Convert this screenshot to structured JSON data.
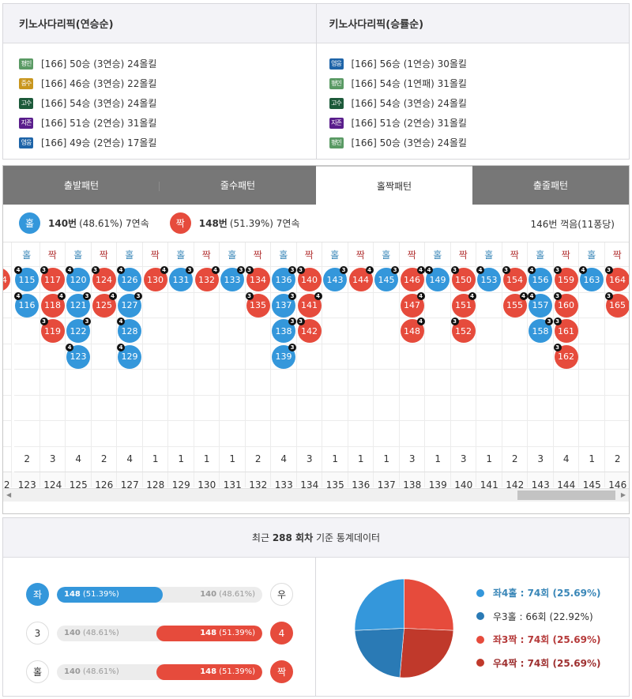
{
  "picks": [
    {
      "title": "키노사다리픽(연승순)",
      "rows": [
        {
          "badge": "평민",
          "badge_color": "#5a9a64",
          "text": "[166] 50승 (3연승) 24올킬"
        },
        {
          "badge": "중수",
          "badge_color": "#c8961e",
          "text": "[166] 46승 (3연승) 22올킬"
        },
        {
          "badge": "고수",
          "badge_color": "#1d5a3a",
          "text": "[166] 54승 (3연승) 24올킬"
        },
        {
          "badge": "지존",
          "badge_color": "#5a1e8c",
          "text": "[166] 51승 (2연승) 31올킬"
        },
        {
          "badge": "영웅",
          "badge_color": "#1e64a8",
          "text": "[166] 49승 (2연승) 17올킬"
        }
      ]
    },
    {
      "title": "키노사다리픽(승률순)",
      "rows": [
        {
          "badge": "영웅",
          "badge_color": "#1e64a8",
          "text": "[166] 56승 (1연승) 30올킬"
        },
        {
          "badge": "평민",
          "badge_color": "#5a9a64",
          "text": "[166] 54승 (1연패) 31올킬"
        },
        {
          "badge": "고수",
          "badge_color": "#1d5a3a",
          "text": "[166] 54승 (3연승) 24올킬"
        },
        {
          "badge": "지존",
          "badge_color": "#5a1e8c",
          "text": "[166] 51승 (2연승) 31올킬"
        },
        {
          "badge": "평민",
          "badge_color": "#5a9a64",
          "text": "[166] 50승 (3연승) 24올킬"
        }
      ]
    }
  ],
  "tabs": [
    {
      "label": "출발패턴",
      "active": false
    },
    {
      "label": "줄수패턴",
      "active": false
    },
    {
      "label": "홀짝패턴",
      "active": true
    },
    {
      "label": "출줄패턴",
      "active": false
    }
  ],
  "summary": {
    "odd": {
      "icon": "홀",
      "count": "140번",
      "detail": "(48.61%) 7연속"
    },
    "even": {
      "icon": "짝",
      "count": "148번",
      "detail": "(51.39%) 7연속"
    },
    "right": "146번 꺽음(11퐁당)"
  },
  "colors": {
    "odd": "#3497db",
    "even": "#e64b3c",
    "odd_dark": "#2a7ab5",
    "even_dark": "#c0392b"
  },
  "grid": {
    "partial_left": {
      "ball": "4",
      "round": "2"
    },
    "columns": [
      {
        "head": "홀",
        "type": "odd",
        "balls": [
          {
            "n": "115",
            "b": "4",
            "s": "L"
          },
          {
            "n": "116",
            "b": "4",
            "s": "L"
          }
        ],
        "count": "2",
        "round": "123"
      },
      {
        "head": "짝",
        "type": "even",
        "balls": [
          {
            "n": "117",
            "b": "3",
            "s": "L"
          },
          {
            "n": "118",
            "b": "4",
            "s": "R"
          },
          {
            "n": "119",
            "b": "3",
            "s": "L"
          }
        ],
        "count": "3",
        "round": "124"
      },
      {
        "head": "홀",
        "type": "odd",
        "balls": [
          {
            "n": "120",
            "b": "4",
            "s": "L"
          },
          {
            "n": "121",
            "b": "3",
            "s": "R"
          },
          {
            "n": "122",
            "b": "3",
            "s": "R"
          },
          {
            "n": "123",
            "b": "4",
            "s": "L"
          }
        ],
        "count": "4",
        "round": "125"
      },
      {
        "head": "짝",
        "type": "even",
        "balls": [
          {
            "n": "124",
            "b": "3",
            "s": "L"
          },
          {
            "n": "125",
            "b": "4",
            "s": "R"
          }
        ],
        "count": "2",
        "round": "126"
      },
      {
        "head": "홀",
        "type": "odd",
        "balls": [
          {
            "n": "126",
            "b": "4",
            "s": "L"
          },
          {
            "n": "127",
            "b": "3",
            "s": "R"
          },
          {
            "n": "128",
            "b": "4",
            "s": "L"
          },
          {
            "n": "129",
            "b": "4",
            "s": "L"
          }
        ],
        "count": "4",
        "round": "127"
      },
      {
        "head": "짝",
        "type": "even",
        "balls": [
          {
            "n": "130",
            "b": "4",
            "s": "R"
          }
        ],
        "count": "1",
        "round": "128"
      },
      {
        "head": "홀",
        "type": "odd",
        "balls": [
          {
            "n": "131",
            "b": "3",
            "s": "R"
          }
        ],
        "count": "1",
        "round": "129"
      },
      {
        "head": "짝",
        "type": "even",
        "balls": [
          {
            "n": "132",
            "b": "4",
            "s": "R"
          }
        ],
        "count": "1",
        "round": "130"
      },
      {
        "head": "홀",
        "type": "odd",
        "balls": [
          {
            "n": "133",
            "b": "3",
            "s": "R"
          }
        ],
        "count": "1",
        "round": "131"
      },
      {
        "head": "짝",
        "type": "even",
        "balls": [
          {
            "n": "134",
            "b": "3",
            "s": "L"
          },
          {
            "n": "135",
            "b": "3",
            "s": "L"
          }
        ],
        "count": "2",
        "round": "132"
      },
      {
        "head": "홀",
        "type": "odd",
        "balls": [
          {
            "n": "136",
            "b": "3",
            "s": "R"
          },
          {
            "n": "137",
            "b": "3",
            "s": "R"
          },
          {
            "n": "138",
            "b": "3",
            "s": "R"
          },
          {
            "n": "139",
            "b": "3",
            "s": "R"
          }
        ],
        "count": "4",
        "round": "133"
      },
      {
        "head": "짝",
        "type": "even",
        "balls": [
          {
            "n": "140",
            "b": "3",
            "s": "L"
          },
          {
            "n": "141",
            "b": "4",
            "s": "R"
          },
          {
            "n": "142",
            "b": "3",
            "s": "L"
          }
        ],
        "count": "3",
        "round": "134"
      },
      {
        "head": "홀",
        "type": "odd",
        "balls": [
          {
            "n": "143",
            "b": "3",
            "s": "R"
          }
        ],
        "count": "1",
        "round": "135"
      },
      {
        "head": "짝",
        "type": "even",
        "balls": [
          {
            "n": "144",
            "b": "4",
            "s": "R"
          }
        ],
        "count": "1",
        "round": "136"
      },
      {
        "head": "홀",
        "type": "odd",
        "balls": [
          {
            "n": "145",
            "b": "3",
            "s": "R"
          }
        ],
        "count": "1",
        "round": "137"
      },
      {
        "head": "짝",
        "type": "even",
        "balls": [
          {
            "n": "146",
            "b": "4",
            "s": "R"
          },
          {
            "n": "147",
            "b": "4",
            "s": "R"
          },
          {
            "n": "148",
            "b": "4",
            "s": "R"
          }
        ],
        "count": "3",
        "round": "138"
      },
      {
        "head": "홀",
        "type": "odd",
        "balls": [
          {
            "n": "149",
            "b": "4",
            "s": "L"
          }
        ],
        "count": "1",
        "round": "139"
      },
      {
        "head": "짝",
        "type": "even",
        "balls": [
          {
            "n": "150",
            "b": "3",
            "s": "L"
          },
          {
            "n": "151",
            "b": "4",
            "s": "R"
          },
          {
            "n": "152",
            "b": "3",
            "s": "L"
          }
        ],
        "count": "3",
        "round": "140"
      },
      {
        "head": "홀",
        "type": "odd",
        "balls": [
          {
            "n": "153",
            "b": "4",
            "s": "L"
          }
        ],
        "count": "1",
        "round": "141"
      },
      {
        "head": "짝",
        "type": "even",
        "balls": [
          {
            "n": "154",
            "b": "3",
            "s": "L"
          },
          {
            "n": "155",
            "b": "4",
            "s": "R"
          }
        ],
        "count": "2",
        "round": "142"
      },
      {
        "head": "홀",
        "type": "odd",
        "balls": [
          {
            "n": "156",
            "b": "4",
            "s": "L"
          },
          {
            "n": "157",
            "b": "4",
            "s": "L"
          },
          {
            "n": "158",
            "b": "3",
            "s": "R"
          }
        ],
        "count": "3",
        "round": "143"
      },
      {
        "head": "짝",
        "type": "even",
        "balls": [
          {
            "n": "159",
            "b": "3",
            "s": "L"
          },
          {
            "n": "160",
            "b": "3",
            "s": "L"
          },
          {
            "n": "161",
            "b": "3",
            "s": "L"
          },
          {
            "n": "162",
            "b": "3",
            "s": "L"
          }
        ],
        "count": "4",
        "round": "144"
      },
      {
        "head": "홀",
        "type": "odd",
        "balls": [
          {
            "n": "163",
            "b": "4",
            "s": "L"
          }
        ],
        "count": "1",
        "round": "145"
      },
      {
        "head": "짝",
        "type": "even",
        "balls": [
          {
            "n": "164",
            "b": "3",
            "s": "L"
          },
          {
            "n": "165",
            "b": "3",
            "s": "L"
          }
        ],
        "count": "2",
        "round": "146"
      }
    ]
  },
  "stats": {
    "title_prefix": "최근",
    "title_count": "288 회차",
    "title_suffix": "기준 통계데이터",
    "bars": [
      {
        "left_cap": "좌",
        "left_cap_style": "blue",
        "right_cap": "우",
        "right_cap_style": "white",
        "fill": "blue",
        "fill_pct": 51.39,
        "left_num": "148",
        "left_pct": "(51.39%)",
        "right_num": "140",
        "right_pct": "(48.61%)"
      },
      {
        "left_cap": "3",
        "left_cap_style": "white",
        "right_cap": "4",
        "right_cap_style": "red",
        "fill": "red",
        "fill_pct": 51.39,
        "left_num": "140",
        "left_pct": "(48.61%)",
        "right_num": "148",
        "right_pct": "(51.39%)"
      },
      {
        "left_cap": "홀",
        "left_cap_style": "white",
        "right_cap": "짝",
        "right_cap_style": "red",
        "fill": "red",
        "fill_pct": 51.39,
        "left_num": "140",
        "left_pct": "(48.61%)",
        "right_num": "148",
        "right_pct": "(51.39%)"
      }
    ],
    "legend": [
      {
        "label": "좌4홀 : 74회 (25.69%)",
        "color": "#3497db",
        "text_color": "#3a87b8",
        "bold": true
      },
      {
        "label": "우3홀 : 66회 (22.92%)",
        "color": "#2a7ab5",
        "text_color": "#333333",
        "bold": false
      },
      {
        "label": "좌3짝 : 74회 (25.69%)",
        "color": "#e64b3c",
        "text_color": "#b53a3a",
        "bold": true
      },
      {
        "label": "우4짝 : 74회 (25.69%)",
        "color": "#c0392b",
        "text_color": "#9e3030",
        "bold": true
      }
    ]
  },
  "chart_data": {
    "type": "pie",
    "title": "최근 288 회차 기준 통계데이터",
    "categories": [
      "좌4홀",
      "우3홀",
      "좌3짝",
      "우4짝"
    ],
    "values": [
      74,
      66,
      74,
      74
    ],
    "percentages": [
      25.69,
      22.92,
      25.69,
      25.69
    ],
    "colors": [
      "#3497db",
      "#2a7ab5",
      "#e64b3c",
      "#c0392b"
    ],
    "legend_position": "right"
  }
}
